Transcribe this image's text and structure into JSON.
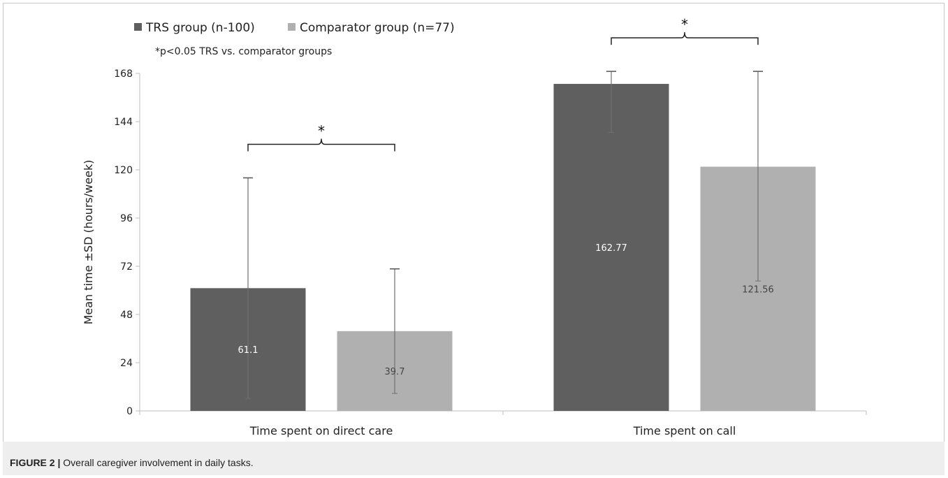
{
  "figure": {
    "label": "FIGURE 2 |",
    "caption": "Overall caregiver involvement in daily tasks."
  },
  "chart_data": {
    "type": "bar",
    "title": "",
    "xlabel": "",
    "ylabel": "Mean time ±SD (hours/week)",
    "ylim": [
      0,
      168
    ],
    "yticks": [
      0,
      24,
      48,
      72,
      96,
      120,
      144,
      168
    ],
    "categories": [
      "Time spent on direct care",
      "Time spent on call"
    ],
    "series": [
      {
        "name": "TRS group (n-100)",
        "color": "#5f5f5f",
        "label_color": "#ffffff",
        "values": [
          61.1,
          162.77
        ],
        "value_labels": [
          "61.1",
          "162.77"
        ],
        "sd": [
          54.9,
          24.2
        ]
      },
      {
        "name": "Comparator group (n=77)",
        "color": "#b0b0b0",
        "label_color": "#444444",
        "values": [
          39.7,
          121.56
        ],
        "value_labels": [
          "39.7",
          "121.56"
        ],
        "sd": [
          31.0,
          56.9
        ]
      }
    ],
    "annotations": {
      "note": "*p<0.05 TRS vs. comparator groups",
      "significance_marker": "*"
    },
    "grid": false,
    "legend_position": "top-left"
  }
}
